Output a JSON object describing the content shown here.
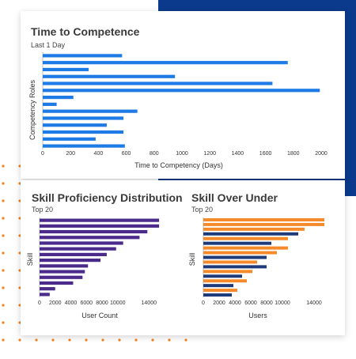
{
  "colors": {
    "navy_block": "#0b3a8c",
    "dots": "#f58220",
    "blue": "#1e7be6",
    "purple": "#4b2b8a",
    "orange": "#f58a2a",
    "navy": "#1d3a7a"
  },
  "chart_data": [
    {
      "type": "bar",
      "orientation": "horizontal",
      "title": "Time to Competence",
      "subtitle": "Last 1 Day",
      "ylabel": "Competency Roles",
      "xlabel": "Time to Competency (Days)",
      "x_ticks": [
        "0",
        "200",
        "400",
        "600",
        "800",
        "1000",
        "1200",
        "1400",
        "1600",
        "1800",
        "2000"
      ],
      "xlim": [
        0,
        2000
      ],
      "values": [
        570,
        1760,
        330,
        950,
        1650,
        1990,
        220,
        100,
        680,
        580,
        460,
        580,
        380,
        590
      ]
    },
    {
      "type": "bar",
      "orientation": "horizontal",
      "title": "Skill Proficiency Distribution",
      "subtitle": "Top 20",
      "ylabel": "Skill",
      "xlabel": "User Count",
      "x_ticks": [
        "0",
        "2000",
        "4000",
        "6000",
        "8000",
        "10000",
        "14000"
      ],
      "xlim": [
        0,
        16000
      ],
      "values": [
        15300,
        15300,
        13800,
        12800,
        10700,
        9800,
        8600,
        7800,
        6200,
        5800,
        5500,
        4300,
        2000,
        1300
      ]
    },
    {
      "type": "bar",
      "orientation": "horizontal",
      "title": "Skill Over Under",
      "subtitle": "Top 20",
      "ylabel": "Skill",
      "xlabel": "Users",
      "x_ticks": [
        "0",
        "2000",
        "4000",
        "6000",
        "8000",
        "10000",
        "14000"
      ],
      "xlim": [
        0,
        16000
      ],
      "values": [
        15300,
        15300,
        12800,
        12000,
        10700,
        8600,
        10700,
        9300,
        8000,
        6800,
        8000,
        6200,
        4900,
        5500,
        3800,
        4300,
        3600
      ]
    }
  ]
}
